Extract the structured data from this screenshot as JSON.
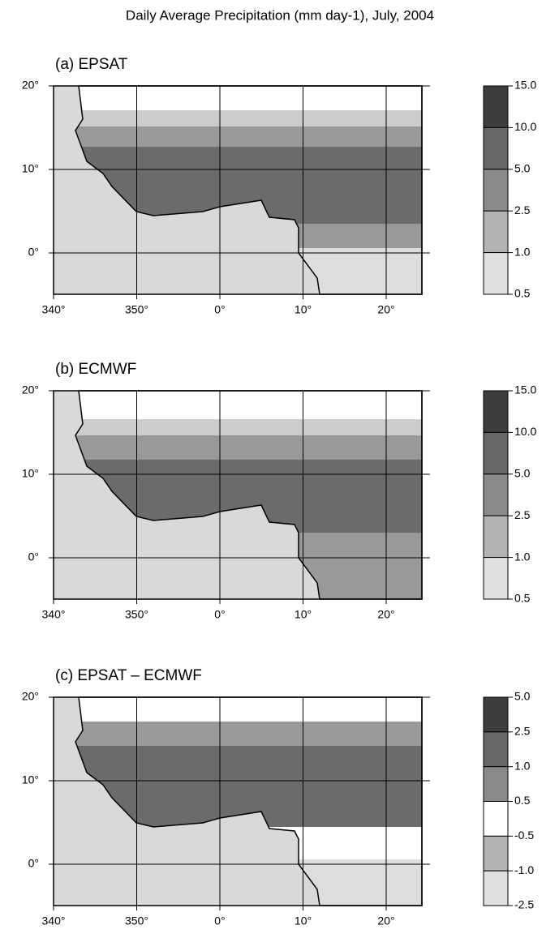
{
  "title": "Daily Average Precipitation (mm day-1), July, 2004",
  "panels": [
    {
      "label": "(a) EPSAT",
      "x_tick_labels": [
        "340°",
        "350°",
        "0°",
        "10°",
        "20°"
      ],
      "y_tick_labels": [
        "20°",
        "10°",
        "0°"
      ],
      "colorbar_labels": [
        "15.0",
        "10.0",
        "5.0",
        "2.5",
        "1.0",
        "0.5"
      ],
      "colorbar_colors": [
        "#3d3d3d",
        "#666666",
        "#8a8a8a",
        "#b3b3b3",
        "#e0e0e0"
      ]
    },
    {
      "label": "(b) ECMWF",
      "x_tick_labels": [
        "340°",
        "350°",
        "0°",
        "10°",
        "20°"
      ],
      "y_tick_labels": [
        "20°",
        "10°",
        "0°"
      ],
      "colorbar_labels": [
        "15.0",
        "10.0",
        "5.0",
        "2.5",
        "1.0",
        "0.5"
      ],
      "colorbar_colors": [
        "#3d3d3d",
        "#666666",
        "#8a8a8a",
        "#b3b3b3",
        "#e0e0e0"
      ]
    },
    {
      "label": "(c) EPSAT – ECMWF",
      "x_tick_labels": [
        "340°",
        "350°",
        "0°",
        "10°",
        "20°"
      ],
      "y_tick_labels": [
        "20°",
        "10°",
        "0°"
      ],
      "colorbar_labels": [
        "5.0",
        "2.5",
        "1.0",
        "0.5",
        "-0.5",
        "-1.0",
        "-2.5"
      ],
      "colorbar_colors": [
        "#3d3d3d",
        "#666666",
        "#8a8a8a",
        "#ffffff",
        "#b3b3b3",
        "#e0e0e0"
      ]
    }
  ]
}
